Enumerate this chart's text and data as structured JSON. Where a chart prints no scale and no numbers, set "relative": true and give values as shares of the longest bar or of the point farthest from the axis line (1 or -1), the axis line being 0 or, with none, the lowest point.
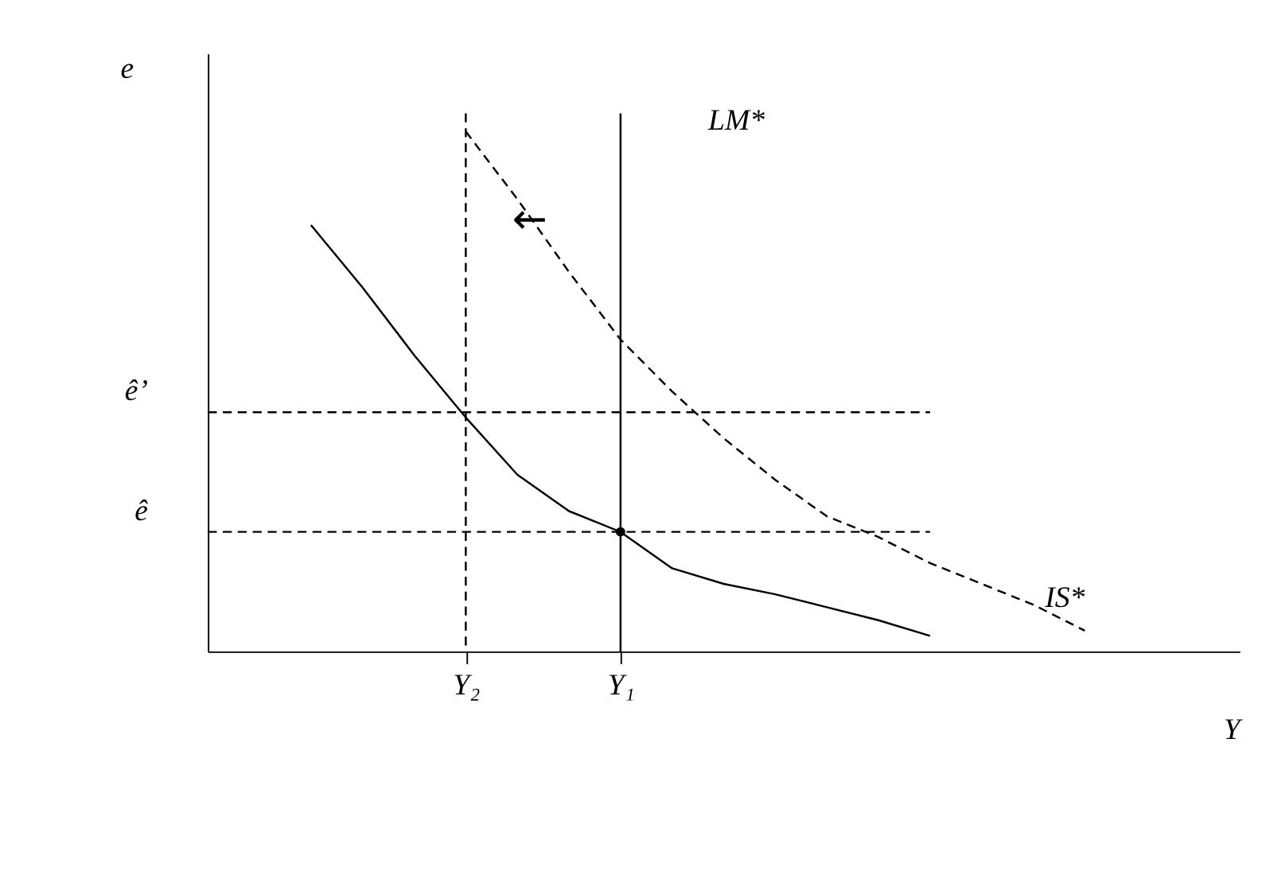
{
  "chart_data": {
    "type": "line",
    "relative": true,
    "xlabel": "Y",
    "ylabel": "e",
    "categories": [
      null,
      null,
      null,
      null,
      null,
      "Y₂",
      null,
      null,
      "Y₁",
      null,
      null,
      null,
      null,
      null,
      null,
      null,
      null,
      null,
      null,
      null
    ],
    "tick_labels": "x",
    "grid": false,
    "marker": "none",
    "series": [
      {
        "color": "#000000",
        "line_style": "solid",
        "values": [
          null,
          null,
          0.82,
          0.7,
          0.57,
          0.45,
          0.34,
          0.27,
          0.23,
          0.16,
          0.13,
          0.11,
          0.085,
          0.06,
          0.03,
          null,
          null,
          null,
          null,
          null
        ]
      },
      {
        "name": "IS*",
        "color": "#000000",
        "line_style": "dashed",
        "values": [
          null,
          null,
          null,
          null,
          null,
          1,
          0.87,
          0.73,
          0.6,
          0.5,
          0.41,
          0.33,
          0.26,
          0.22,
          0.17,
          0.13,
          0.09,
          0.04,
          null,
          null
        ]
      },
      {
        "name": "ê’",
        "color": "#000000",
        "line_style": "dashed",
        "values": [
          0.46,
          0.46,
          0.46,
          0.46,
          0.46,
          0.46,
          0.46,
          0.46,
          0.46,
          0.46,
          0.46,
          0.46,
          0.46,
          0.46,
          0.46,
          null,
          null,
          null,
          null,
          null
        ]
      },
      {
        "name": "ê",
        "color": "#000000",
        "line_style": "dashed",
        "values": [
          0.23,
          0.23,
          0.23,
          0.23,
          0.23,
          0.23,
          0.23,
          0.23,
          0.23,
          0.23,
          0.23,
          0.23,
          0.23,
          0.23,
          0.23,
          null,
          null,
          null,
          null,
          null
        ]
      },
      {
        "type": "scatter",
        "marker": "circle",
        "color": "#000000",
        "values": [
          null,
          null,
          null,
          null,
          null,
          null,
          null,
          null,
          0.23,
          null,
          null,
          null,
          null,
          null,
          null,
          null,
          null,
          null,
          null,
          null
        ]
      }
    ],
    "ref_lines": [
      {
        "axis": "x",
        "value": "Y₁",
        "line_style": "solid",
        "color": "#000000"
      },
      {
        "axis": "x",
        "value": "Y₂",
        "line_style": "dashed",
        "color": "#000000"
      }
    ],
    "annotations": [
      "LM*",
      "←"
    ]
  }
}
